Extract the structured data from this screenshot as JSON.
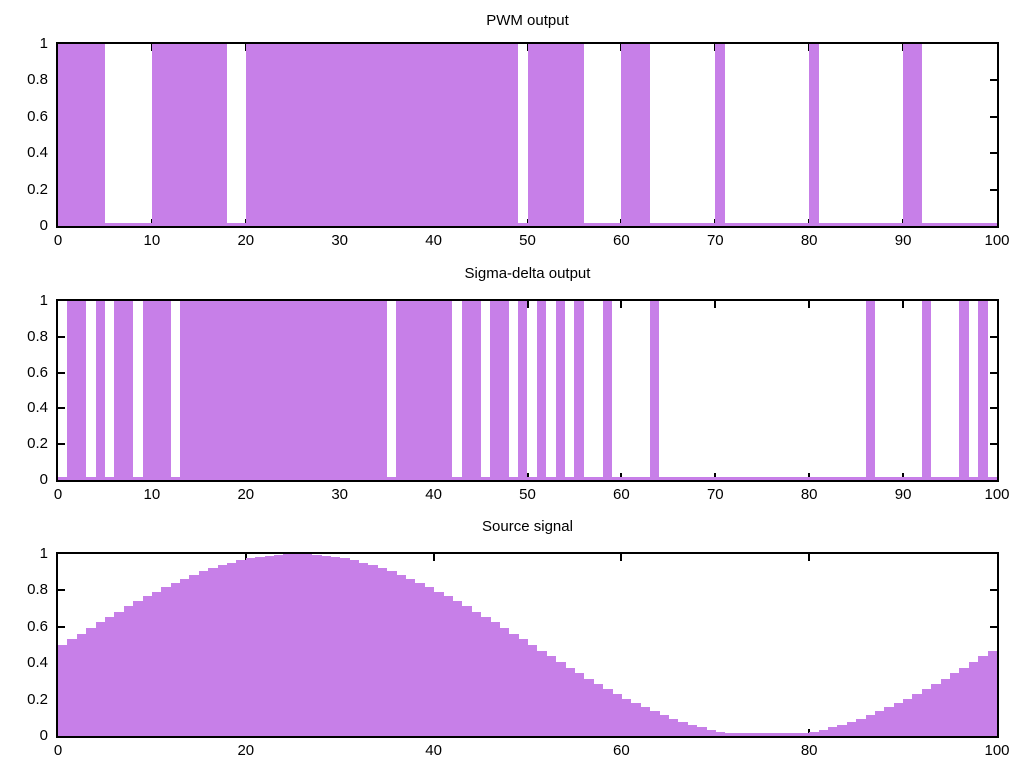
{
  "figure": {
    "background": "#ffffff",
    "fill_color": "#c77fe8",
    "axis_color": "#000000",
    "text_color": "#000000"
  },
  "chart_data": [
    {
      "type": "bar",
      "title": "PWM output",
      "xlabel": "",
      "ylabel": "",
      "xlim": [
        0,
        100
      ],
      "ylim": [
        0,
        1
      ],
      "grid": false,
      "legend": "none",
      "bar_mode": "intervals",
      "on_value": 1,
      "off_value": 0,
      "on_intervals": [
        [
          0,
          5
        ],
        [
          10,
          18
        ],
        [
          20,
          49
        ],
        [
          50,
          56
        ],
        [
          60,
          63
        ],
        [
          70,
          71
        ],
        [
          80,
          81
        ],
        [
          90,
          92
        ]
      ],
      "x_tick_values": [
        0,
        10,
        20,
        30,
        40,
        50,
        60,
        70,
        80,
        90,
        100
      ],
      "x_tick_labels": [
        "0",
        "10",
        "20",
        "30",
        "40",
        "50",
        "60",
        "70",
        "80",
        "90",
        "100"
      ],
      "y_tick_values": [
        0,
        0.2,
        0.4,
        0.6,
        0.8,
        1
      ],
      "y_tick_labels": [
        "0",
        "0.2",
        "0.4",
        "0.6",
        "0.8",
        "1"
      ]
    },
    {
      "type": "bar",
      "title": "Sigma-delta output",
      "xlabel": "",
      "ylabel": "",
      "xlim": [
        0,
        100
      ],
      "ylim": [
        0,
        1
      ],
      "grid": false,
      "legend": "none",
      "bar_mode": "intervals",
      "on_value": 1,
      "off_value": 0,
      "on_intervals": [
        [
          1,
          3
        ],
        [
          4,
          5
        ],
        [
          6,
          8
        ],
        [
          9,
          12
        ],
        [
          13,
          35
        ],
        [
          36,
          42
        ],
        [
          43,
          45
        ],
        [
          46,
          48
        ],
        [
          49,
          50
        ],
        [
          51,
          52
        ],
        [
          53,
          54
        ],
        [
          55,
          56
        ],
        [
          58,
          59
        ],
        [
          63,
          64
        ],
        [
          86,
          87
        ],
        [
          92,
          93
        ],
        [
          96,
          97
        ],
        [
          98,
          99
        ]
      ],
      "x_tick_values": [
        0,
        10,
        20,
        30,
        40,
        50,
        60,
        70,
        80,
        90,
        100
      ],
      "x_tick_labels": [
        "0",
        "10",
        "20",
        "30",
        "40",
        "50",
        "60",
        "70",
        "80",
        "90",
        "100"
      ],
      "y_tick_values": [
        0,
        0.2,
        0.4,
        0.6,
        0.8,
        1
      ],
      "y_tick_labels": [
        "0",
        "0.2",
        "0.4",
        "0.6",
        "0.8",
        "1"
      ]
    },
    {
      "type": "bar",
      "title": "Source signal",
      "xlabel": "",
      "ylabel": "",
      "xlim": [
        0,
        100
      ],
      "ylim": [
        0,
        1
      ],
      "grid": false,
      "legend": "none",
      "bar_mode": "samples",
      "x_start": 0,
      "box_width": 1,
      "values": [
        0.5,
        0.531,
        0.563,
        0.594,
        0.624,
        0.655,
        0.684,
        0.713,
        0.741,
        0.768,
        0.794,
        0.819,
        0.842,
        0.864,
        0.885,
        0.905,
        0.922,
        0.938,
        0.952,
        0.965,
        0.976,
        0.984,
        0.991,
        0.996,
        0.999,
        1,
        0.999,
        0.996,
        0.991,
        0.984,
        0.976,
        0.965,
        0.952,
        0.938,
        0.922,
        0.905,
        0.885,
        0.864,
        0.842,
        0.819,
        0.794,
        0.768,
        0.741,
        0.713,
        0.684,
        0.655,
        0.624,
        0.594,
        0.563,
        0.531,
        0.5,
        0.469,
        0.437,
        0.406,
        0.376,
        0.345,
        0.316,
        0.287,
        0.259,
        0.232,
        0.206,
        0.181,
        0.158,
        0.136,
        0.115,
        0.095,
        0.078,
        0.062,
        0.048,
        0.035,
        0.024,
        0.016,
        0.009,
        0.004,
        0.001,
        0,
        0.001,
        0.004,
        0.009,
        0.016,
        0.024,
        0.035,
        0.048,
        0.062,
        0.078,
        0.095,
        0.115,
        0.136,
        0.158,
        0.181,
        0.206,
        0.232,
        0.259,
        0.287,
        0.316,
        0.345,
        0.376,
        0.406,
        0.437,
        0.469
      ],
      "x_tick_values": [
        0,
        20,
        40,
        60,
        80,
        100
      ],
      "x_tick_labels": [
        "0",
        "20",
        "40",
        "60",
        "80",
        "100"
      ],
      "y_tick_values": [
        0,
        0.2,
        0.4,
        0.6,
        0.8,
        1
      ],
      "y_tick_labels": [
        "0",
        "0.2",
        "0.4",
        "0.6",
        "0.8",
        "1"
      ]
    }
  ]
}
